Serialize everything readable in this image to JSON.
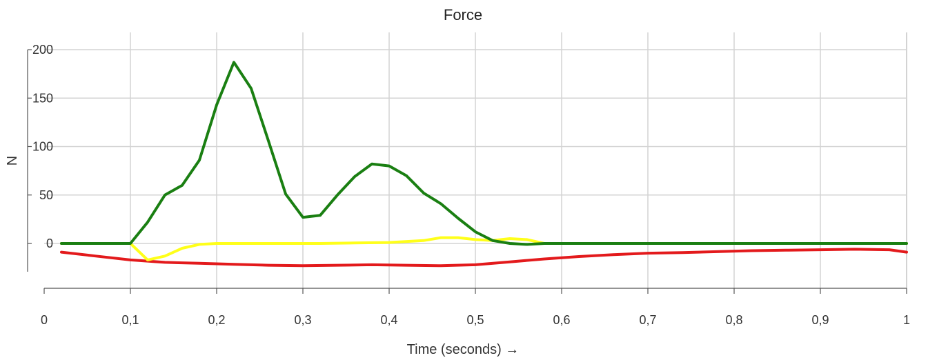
{
  "chart_data": {
    "type": "line",
    "title": "Force",
    "xlabel": "Time (seconds) →",
    "ylabel": "N",
    "xlim": [
      0,
      1
    ],
    "ylim": [
      -25,
      200
    ],
    "grid": true,
    "x_ticks": [
      0,
      0.1,
      0.2,
      0.3,
      0.4,
      0.5,
      0.6,
      0.7,
      0.8,
      0.9,
      1
    ],
    "x_tick_labels": [
      "0",
      "0,1",
      "0,2",
      "0,3",
      "0,4",
      "0,5",
      "0,6",
      "0,7",
      "0,8",
      "0,9",
      "1"
    ],
    "y_ticks": [
      0,
      50,
      100,
      150,
      200
    ],
    "y_tick_labels": [
      "0",
      "50",
      "100",
      "150",
      "200"
    ],
    "series": [
      {
        "color": "#e31a1c",
        "points": [
          [
            0.02,
            -9
          ],
          [
            0.06,
            -13
          ],
          [
            0.1,
            -17
          ],
          [
            0.14,
            -19.5
          ],
          [
            0.18,
            -20.5
          ],
          [
            0.22,
            -21.5
          ],
          [
            0.26,
            -22.5
          ],
          [
            0.3,
            -23
          ],
          [
            0.34,
            -22.5
          ],
          [
            0.38,
            -22
          ],
          [
            0.42,
            -22.5
          ],
          [
            0.46,
            -23
          ],
          [
            0.5,
            -22
          ],
          [
            0.54,
            -19
          ],
          [
            0.58,
            -16
          ],
          [
            0.62,
            -13.5
          ],
          [
            0.66,
            -11.5
          ],
          [
            0.7,
            -10
          ],
          [
            0.74,
            -9.5
          ],
          [
            0.78,
            -8.5
          ],
          [
            0.82,
            -7.5
          ],
          [
            0.86,
            -7
          ],
          [
            0.9,
            -6.5
          ],
          [
            0.94,
            -6
          ],
          [
            0.98,
            -6.5
          ],
          [
            1.0,
            -9
          ]
        ]
      },
      {
        "color": "#ffff1a",
        "points": [
          [
            0.02,
            0
          ],
          [
            0.04,
            0
          ],
          [
            0.06,
            0
          ],
          [
            0.08,
            0
          ],
          [
            0.1,
            0
          ],
          [
            0.12,
            -17
          ],
          [
            0.14,
            -13
          ],
          [
            0.16,
            -5
          ],
          [
            0.18,
            -1
          ],
          [
            0.2,
            0
          ],
          [
            0.24,
            0
          ],
          [
            0.28,
            0
          ],
          [
            0.32,
            0
          ],
          [
            0.36,
            0.5
          ],
          [
            0.4,
            1
          ],
          [
            0.44,
            3
          ],
          [
            0.46,
            6
          ],
          [
            0.48,
            6
          ],
          [
            0.5,
            4
          ],
          [
            0.52,
            3
          ],
          [
            0.54,
            5
          ],
          [
            0.56,
            4
          ],
          [
            0.58,
            0
          ],
          [
            0.62,
            0
          ],
          [
            0.7,
            0
          ],
          [
            0.8,
            0
          ],
          [
            0.9,
            0
          ],
          [
            1.0,
            0
          ]
        ]
      },
      {
        "color": "#1a7f12",
        "points": [
          [
            0.02,
            0
          ],
          [
            0.04,
            0
          ],
          [
            0.06,
            0
          ],
          [
            0.08,
            0
          ],
          [
            0.1,
            0
          ],
          [
            0.12,
            22
          ],
          [
            0.14,
            50
          ],
          [
            0.16,
            60
          ],
          [
            0.18,
            86
          ],
          [
            0.2,
            143
          ],
          [
            0.22,
            187
          ],
          [
            0.24,
            160
          ],
          [
            0.26,
            106
          ],
          [
            0.28,
            51
          ],
          [
            0.3,
            27
          ],
          [
            0.32,
            29
          ],
          [
            0.34,
            50
          ],
          [
            0.36,
            69
          ],
          [
            0.38,
            82
          ],
          [
            0.4,
            80
          ],
          [
            0.42,
            70
          ],
          [
            0.44,
            52
          ],
          [
            0.46,
            41
          ],
          [
            0.48,
            26
          ],
          [
            0.5,
            12
          ],
          [
            0.52,
            3
          ],
          [
            0.54,
            0
          ],
          [
            0.56,
            -1
          ],
          [
            0.58,
            0
          ],
          [
            0.6,
            0
          ],
          [
            0.7,
            0
          ],
          [
            0.8,
            0
          ],
          [
            0.9,
            0
          ],
          [
            1.0,
            0
          ]
        ]
      }
    ]
  }
}
